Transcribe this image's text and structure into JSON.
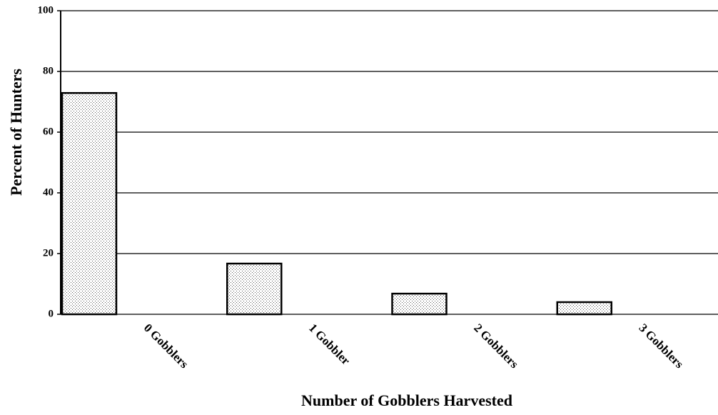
{
  "chart_data": {
    "type": "bar",
    "categories": [
      "0 Gobblers",
      "1 Gobbler",
      "2 Gobblers",
      "3 Gobblers"
    ],
    "values": [
      72.9,
      16.7,
      6.8,
      4.0
    ],
    "x_label": "Number of Gobblers Harvested",
    "y_label": "Percent of Hunters",
    "ylim": [
      0,
      100
    ],
    "yticks": [
      0,
      20,
      40,
      60,
      80,
      100
    ],
    "grid": true
  }
}
